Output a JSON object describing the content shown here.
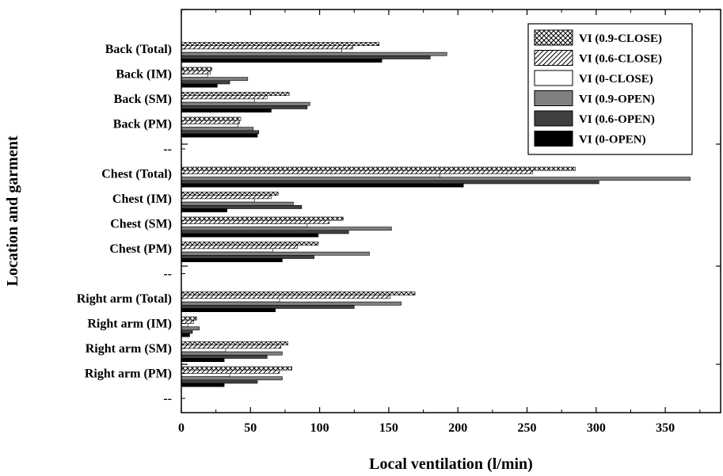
{
  "chart_data": {
    "type": "bar",
    "orientation": "horizontal",
    "xlabel": "Local ventilation (l/min)",
    "ylabel": "Location and garment",
    "xlim": [
      0,
      390
    ],
    "xticks": [
      0,
      50,
      100,
      150,
      200,
      250,
      300,
      350
    ],
    "grid": false,
    "legend_position": "top-right",
    "categories": [
      "Back (Total)",
      "Back (IM)",
      "Back (SM)",
      "Back (PM)",
      "--",
      "Chest (Total)",
      "Chest (IM)",
      "Chest (SM)",
      "Chest (PM)",
      "--",
      "Right arm (Total)",
      "Right arm (IM)",
      "Right arm (SM)",
      "Right arm (PM)",
      "--"
    ],
    "series": [
      {
        "name": "VI (0.9-CLOSE)",
        "pattern": "crosshatch",
        "color": "#000000",
        "values": [
          143,
          22,
          78,
          43,
          null,
          285,
          70,
          117,
          99,
          null,
          169,
          11,
          77,
          80,
          null
        ]
      },
      {
        "name": "VI (0.6-CLOSE)",
        "pattern": "diagonal",
        "color": "#000000",
        "values": [
          124,
          21,
          62,
          42,
          null,
          254,
          65,
          107,
          84,
          null,
          151,
          9,
          72,
          71,
          null
        ]
      },
      {
        "name": "VI (0-CLOSE)",
        "pattern": "none",
        "color": "#ffffff",
        "values": [
          116,
          19,
          53,
          41,
          null,
          187,
          53,
          91,
          66,
          null,
          71,
          5,
          32,
          35,
          null
        ]
      },
      {
        "name": "VI (0.9-OPEN)",
        "pattern": "solid",
        "color": "#808080",
        "values": [
          192,
          48,
          93,
          52,
          null,
          368,
          81,
          152,
          136,
          null,
          159,
          13,
          73,
          73,
          null
        ]
      },
      {
        "name": "VI (0.6-OPEN)",
        "pattern": "solid",
        "color": "#404040",
        "values": [
          180,
          35,
          91,
          56,
          null,
          302,
          87,
          121,
          96,
          null,
          125,
          8,
          62,
          55,
          null
        ]
      },
      {
        "name": "VI (0-OPEN)",
        "pattern": "solid",
        "color": "#000000",
        "values": [
          145,
          26,
          65,
          55,
          null,
          204,
          33,
          99,
          73,
          null,
          68,
          6,
          31,
          31,
          null
        ]
      }
    ]
  }
}
